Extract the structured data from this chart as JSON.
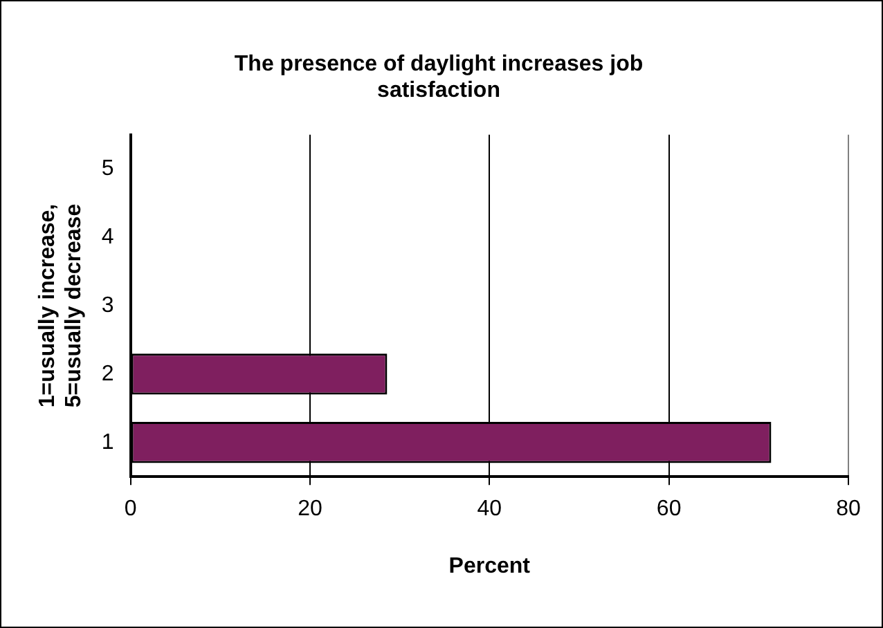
{
  "chart_data": {
    "type": "bar",
    "orientation": "horizontal",
    "title": "The presence of daylight increases job satisfaction",
    "xlabel": "Percent",
    "ylabel": "1=usually increase, 5=usually decrease",
    "categories": [
      "5",
      "4",
      "3",
      "2",
      "1"
    ],
    "values": [
      0,
      0,
      0,
      28.6,
      71.4
    ],
    "color": "#7f1f5f",
    "xlim": [
      0,
      80
    ],
    "xticks": [
      0,
      20,
      40,
      60,
      80
    ],
    "grid": "x",
    "legend": false
  }
}
